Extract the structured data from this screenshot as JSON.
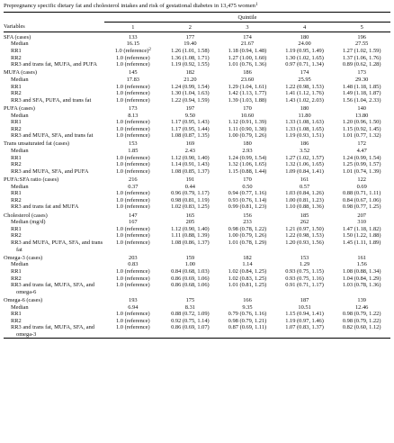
{
  "header": {
    "title": "Prepregnancy specific dietary fat and cholesterol intakes and risk of gestational diabetes in 13,475 women",
    "title_note": "1",
    "spanner": "Quintile",
    "columns": [
      "Variables",
      "1",
      "2",
      "3",
      "4",
      "5"
    ]
  },
  "table": {
    "groups": [
      {
        "label": "SFA (cases)",
        "cases": [
          133,
          177,
          174,
          180,
          196
        ],
        "rows": [
          {
            "label": "Median",
            "values": [
              "16.15",
              "19.40",
              "21.67",
              "24.00",
              "27.55"
            ]
          },
          {
            "label": "RR1",
            "note": "2",
            "values": [
              "1.0 (reference)",
              "1.26 (1.01, 1.58)",
              "1.18 (0.94, 1.48)",
              "1.19 (0.95, 1.49)",
              "1.27 (1.02, 1.59)"
            ]
          },
          {
            "label": "RR2",
            "values": [
              "1.0 (reference)",
              "1.36 (1.08, 1.71)",
              "1.27 (1.00, 1.60)",
              "1.30 (1.02, 1.65)",
              "1.37 (1.06, 1.76)"
            ]
          },
          {
            "label": "RR3 and trans fat, MUFA, and PUFA",
            "values": [
              "1.0 (reference)",
              "1.19 (0.92, 1.55)",
              "1.01 (0.76, 1.36)",
              "0.97 (0.71, 1.34)",
              "0.89 (0.62, 1.28)"
            ]
          }
        ]
      },
      {
        "label": "MUFA (cases)",
        "cases": [
          145,
          182,
          186,
          174,
          173
        ],
        "rows": [
          {
            "label": "Median",
            "values": [
              "17.83",
              "21.20",
              "23.60",
              "25.95",
              "29.30"
            ]
          },
          {
            "label": "RR1",
            "values": [
              "1.0 (reference)",
              "1.24 (0.99, 1.54)",
              "1.29 (1.04, 1.61)",
              "1.22 (0.98, 1.53)",
              "1.48 (1.18, 1.85)"
            ]
          },
          {
            "label": "RR2",
            "values": [
              "1.0 (reference)",
              "1.30 (1.04, 1.63)",
              "1.42 (1.13, 1.77)",
              "1.41 (1.12, 1.76)",
              "1.49 (1.18, 1.87)"
            ]
          },
          {
            "label": "RR3 and SFA, PUFA, and trans fat",
            "values": [
              "1.0 (reference)",
              "1.22 (0.94, 1.59)",
              "1.39 (1.03, 1.88)",
              "1.43 (1.02, 2.03)",
              "1.56 (1.04, 2.33)"
            ]
          }
        ]
      },
      {
        "label": "PUFA (cases)",
        "cases": [
          173,
          197,
          170,
          180,
          140
        ],
        "rows": [
          {
            "label": "Median",
            "values": [
              "8.13",
              "9.50",
              "10.60",
              "11.80",
              "13.80"
            ]
          },
          {
            "label": "RR1",
            "values": [
              "1.0 (reference)",
              "1.17 (0.95, 1.43)",
              "1.12 (0.91, 1.39)",
              "1.33 (1.08, 1.63)",
              "1.20 (0.96, 1.50)"
            ]
          },
          {
            "label": "RR2",
            "values": [
              "1.0 (reference)",
              "1.17 (0.95, 1.44)",
              "1.11 (0.90, 1.38)",
              "1.33 (1.08, 1.65)",
              "1.15 (0.92, 1.45)"
            ]
          },
          {
            "label": "RR3 and MUFA, SFA, and trans fat",
            "values": [
              "1.0 (reference)",
              "1.08 (0.87, 1.35)",
              "1.00 (0.79, 1.26)",
              "1.19 (0.93, 1.51)",
              "1.01 (0.77, 1.32)"
            ]
          }
        ]
      },
      {
        "label": "Trans unsaturated fat (cases)",
        "cases": [
          153,
          169,
          180,
          186,
          172
        ],
        "rows": [
          {
            "label": "Median",
            "values": [
              "1.85",
              "2.43",
              "2.93",
              "3.52",
              "4.47"
            ]
          },
          {
            "label": "RR1",
            "values": [
              "1.0 (reference)",
              "1.12 (0.90, 1.40)",
              "1.24 (0.99, 1.54)",
              "1.27 (1.02, 1.57)",
              "1.24 (0.99, 1.54)"
            ]
          },
          {
            "label": "RR2",
            "values": [
              "1.0 (reference)",
              "1.14 (0.91, 1.43)",
              "1.32 (1.06, 1.65)",
              "1.32 (1.06, 1.65)",
              "1.25 (0.99, 1.57)"
            ]
          },
          {
            "label": "RR3 and MUFA, SFA, and PUFA",
            "values": [
              "1.0 (reference)",
              "1.08 (0.85, 1.37)",
              "1.15 (0.88, 1.44)",
              "1.09 (0.84, 1.41)",
              "1.01 (0.74, 1.39)"
            ]
          }
        ]
      },
      {
        "label": "PUFA:SFA ratio (cases)",
        "cases": [
          216,
          191,
          170,
          161,
          122
        ],
        "rows": [
          {
            "label": "Median",
            "values": [
              "0.37",
              "0.44",
              "0.50",
              "0.57",
              "0.69"
            ]
          },
          {
            "label": "RR1",
            "values": [
              "1.0 (reference)",
              "0.96 (0.79, 1.17)",
              "0.94 (0.77, 1.16)",
              "1.03 (0.84, 1.26)",
              "0.88 (0.71, 1.11)"
            ]
          },
          {
            "label": "RR2",
            "values": [
              "1.0 (reference)",
              "0.98 (0.81, 1.19)",
              "0.93 (0.76, 1.14)",
              "1.00 (0.81, 1.23)",
              "0.84 (0.67, 1.06)"
            ]
          },
          {
            "label": "RR3 and trans fat and MUFA",
            "values": [
              "1.0 (reference)",
              "1.02 (0.83, 1.25)",
              "0.99 (0.81, 1.23)",
              "1.10 (0.88, 1.36)",
              "0.98 (0.77, 1.25)"
            ]
          }
        ]
      },
      {
        "label": "Cholesterol (cases)",
        "cases": [
          147,
          165,
          156,
          185,
          207
        ],
        "rows": [
          {
            "label": "Median (mg/d)",
            "values": [
              "167",
              "205",
              "233",
              "262",
              "310"
            ]
          },
          {
            "label": "RR1",
            "values": [
              "1.0 (reference)",
              "1.12 (0.90, 1.40)",
              "0.98 (0.78, 1.22)",
              "1.21 (0.97, 1.50)",
              "1.47 (1.18, 1.82)"
            ]
          },
          {
            "label": "RR2",
            "values": [
              "1.0 (reference)",
              "1.11 (0.88, 1.39)",
              "1.00 (0.79, 1.26)",
              "1.22 (0.98, 1.53)",
              "1.50 (1.22, 1.88)"
            ]
          },
          {
            "label": "RR3 and MUFA, PUFA, SFA, and trans fat",
            "values": [
              "1.0 (reference)",
              "1.08 (0.86, 1.37)",
              "1.01 (0.78, 1.29)",
              "1.20 (0.93, 1.56)",
              "1.45 (1.11, 1.89)"
            ]
          }
        ]
      },
      {
        "label": "Omega-3 (cases)",
        "cases": [
          203,
          159,
          182,
          153,
          161
        ],
        "rows": [
          {
            "label": "Median",
            "values": [
              "0.83",
              "1.00",
              "1.14",
              "1.29",
              "1.56"
            ]
          },
          {
            "label": "RR1",
            "values": [
              "1.0 (reference)",
              "0.84 (0.68, 1.03)",
              "1.02 (0.84, 1.25)",
              "0.93 (0.75, 1.15)",
              "1.08 (0.88, 1.34)"
            ]
          },
          {
            "label": "RR2",
            "values": [
              "1.0 (reference)",
              "0.86 (0.69, 1.06)",
              "1.02 (0.83, 1.25)",
              "0.93 (0.75, 1.16)",
              "1.04 (0.84, 1.29)"
            ]
          },
          {
            "label": "RR3 and trans fat, MUFA, SFA, and omega-6",
            "values": [
              "1.0 (reference)",
              "0.86 (0.68, 1.06)",
              "1.01 (0.81, 1.25)",
              "0.91 (0.71, 1.17)",
              "1.03 (0.78, 1.36)"
            ]
          }
        ]
      },
      {
        "label": "Omega-6 (cases)",
        "cases": [
          193,
          175,
          166,
          187,
          139
        ],
        "rows": [
          {
            "label": "Median",
            "values": [
              "6.94",
              "8.31",
              "9.35",
              "10.51",
              "12.46"
            ]
          },
          {
            "label": "RR1",
            "values": [
              "1.0 (reference)",
              "0.88 (0.72, 1.09)",
              "0.79 (0.76, 1.16)",
              "1.15 (0.94, 1.41)",
              "0.98 (0.79, 1.22)"
            ]
          },
          {
            "label": "RR2",
            "values": [
              "1.0 (reference)",
              "0.92 (0.75, 1.14)",
              "0.98 (0.79, 1.21)",
              "1.19 (0.97, 1.46)",
              "0.98 (0.79, 1.22)"
            ]
          },
          {
            "label": "RR3 and trans fat, MUFA, SFA, and omega-3",
            "values": [
              "1.0 (reference)",
              "0.86 (0.69, 1.07)",
              "0.87 (0.69, 1.11)",
              "1.07 (0.83, 1.37)",
              "0.82 (0.60, 1.12)"
            ]
          }
        ]
      }
    ]
  }
}
